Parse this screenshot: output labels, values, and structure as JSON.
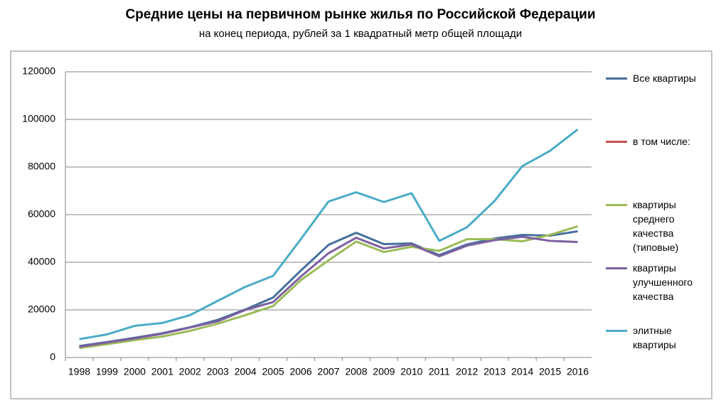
{
  "chart_data": {
    "type": "line",
    "title": "Средние цены на первичном рынке жилья по Российской Федерации",
    "subtitle": "на конец периода, рублей за 1 квадратный метр общей площади",
    "categories": [
      "1998",
      "1999",
      "2000",
      "2001",
      "2002",
      "2003",
      "2004",
      "2005",
      "2006",
      "2007",
      "2008",
      "2009",
      "2010",
      "2011",
      "2012",
      "2013",
      "2014",
      "2015",
      "2016"
    ],
    "series": [
      {
        "name": "Все квартиры",
        "color": "#44709d",
        "values": [
          4800,
          6500,
          8300,
          10200,
          12700,
          15800,
          20200,
          25200,
          36500,
          47300,
          52400,
          47600,
          47900,
          43000,
          47500,
          50000,
          51500,
          51200,
          53000
        ]
      },
      {
        "name": "в том числе:",
        "color": "#c0504d",
        "values": [
          null,
          null,
          null,
          null,
          null,
          null,
          null,
          null,
          null,
          null,
          null,
          null,
          null,
          null,
          null,
          null,
          null,
          null,
          null
        ]
      },
      {
        "name": "квартиры среднего качества (типовые)",
        "color": "#9bbb59",
        "values": [
          4000,
          5600,
          7300,
          8800,
          11200,
          14200,
          17800,
          21600,
          32500,
          40800,
          48700,
          44300,
          46500,
          44800,
          49700,
          49700,
          48800,
          51500,
          55100
        ]
      },
      {
        "name": "квартиры улучшенного качества",
        "color": "#7d5fa0",
        "values": [
          4500,
          6300,
          8000,
          10000,
          12600,
          15200,
          20000,
          23300,
          34000,
          43800,
          50300,
          45800,
          47500,
          42500,
          47000,
          49300,
          50700,
          49000,
          48500
        ]
      },
      {
        "name": "элитные квартиры",
        "color": "#4bacc6",
        "values": [
          7700,
          9700,
          13300,
          14500,
          17800,
          23800,
          29700,
          34300,
          49700,
          65500,
          69400,
          65300,
          69000,
          49000,
          54700,
          65800,
          80400,
          86800,
          95800
        ]
      }
    ],
    "ylim": [
      0,
      120000
    ],
    "yticks": [
      0,
      20000,
      40000,
      60000,
      80000,
      100000,
      120000
    ],
    "grid": true,
    "legend": "right"
  }
}
